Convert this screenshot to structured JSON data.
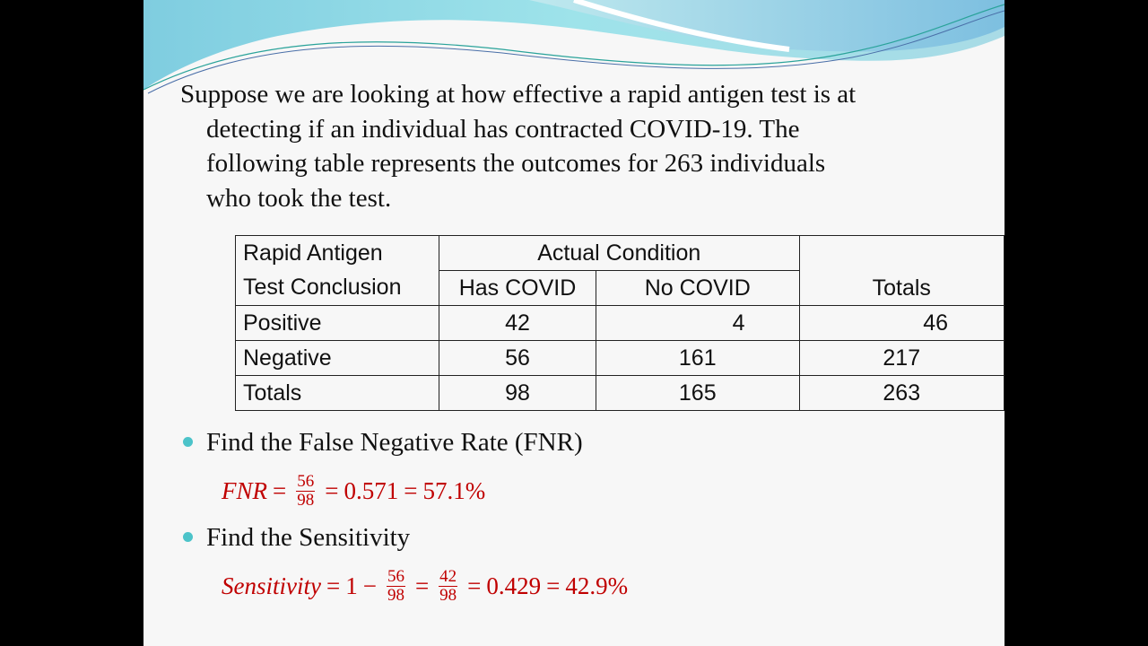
{
  "intro": [
    "Suppose we are looking at how effective a rapid antigen test is at",
    "detecting if an individual has contracted COVID-19. The",
    "following table represents the outcomes for 263 individuals",
    "who took the test."
  ],
  "table": {
    "corner": [
      "Rapid Antigen",
      "Test Conclusion"
    ],
    "group_header": "Actual Condition",
    "col_headers": [
      "Has COVID",
      "No COVID",
      "Totals"
    ],
    "rows": [
      {
        "label": "Positive",
        "values": [
          "42",
          "4",
          "46"
        ]
      },
      {
        "label": "Negative",
        "values": [
          "56",
          "161",
          "217"
        ]
      },
      {
        "label": "Totals",
        "values": [
          "98",
          "165",
          "263"
        ]
      }
    ]
  },
  "bullets": [
    {
      "text": "Find the False Negative Rate (FNR)",
      "formula": {
        "lhs": "FNR",
        "num": "56",
        "den": "98",
        "r1": "0.571",
        "r2": "57.1%"
      }
    },
    {
      "text": "Find the Sensitivity",
      "formula": {
        "lhs": "Sensitivity",
        "one": "1",
        "minus": "−",
        "num1": "56",
        "den1": "98",
        "num2": "42",
        "den2": "98",
        "r1": "0.429",
        "r2": "42.9%"
      }
    }
  ],
  "colors": {
    "accent": "#4cc3c9",
    "formula": "#c00000"
  }
}
